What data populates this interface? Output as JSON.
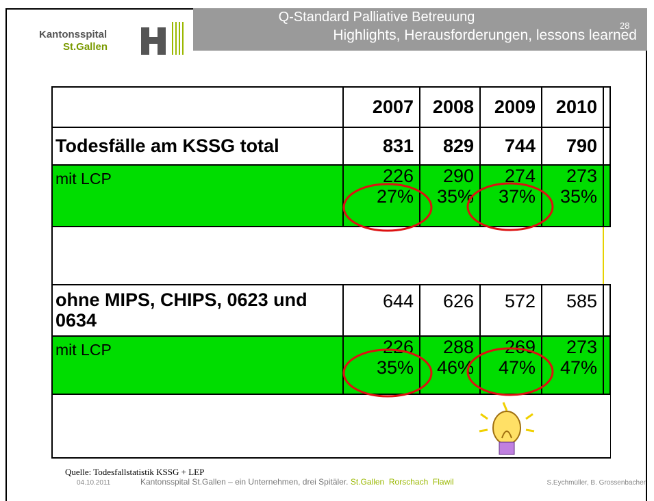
{
  "header": {
    "logo": {
      "line1": "Kantonsspital",
      "line2": "St.Gallen"
    },
    "title": {
      "line1": "Q-Standard Palliative Betreuung",
      "line2": "Highlights, Herausforderungen, lessons learned"
    },
    "page_number": "28"
  },
  "table": {
    "header": [
      "2007",
      "2008",
      "2009",
      "2010"
    ],
    "rows": [
      {
        "label": "Todesfälle am KSSG total",
        "cells": [
          [
            "831"
          ],
          [
            "829"
          ],
          [
            "744"
          ],
          [
            "790"
          ]
        ]
      },
      {
        "label": "mit LCP",
        "cells": [
          [
            "226",
            "27%"
          ],
          [
            "290",
            "35%"
          ],
          [
            "274",
            "37%"
          ],
          [
            "273",
            "35%"
          ]
        ]
      },
      {
        "label": "ohne MIPS, CHIPS, 0623 und 0634",
        "cells": [
          [
            "644"
          ],
          [
            "626"
          ],
          [
            "572"
          ],
          [
            "585"
          ]
        ]
      },
      {
        "label": "mit LCP",
        "cells": [
          [
            "226",
            "35%"
          ],
          [
            "288",
            "46%"
          ],
          [
            "269",
            "47%"
          ],
          [
            "273",
            "47%"
          ]
        ]
      }
    ]
  },
  "footer": {
    "source": "Quelle: Todesfallstatistik KSSG + LEP",
    "date": "04.10.2011",
    "tagline": "Kantonsspital St.Gallen – ein Unternehmen, drei Spitäler.",
    "sites": "St.Gallen  Rorschach  Flawil",
    "authors": "S.Eychmüller, B. Grossenbacher"
  }
}
